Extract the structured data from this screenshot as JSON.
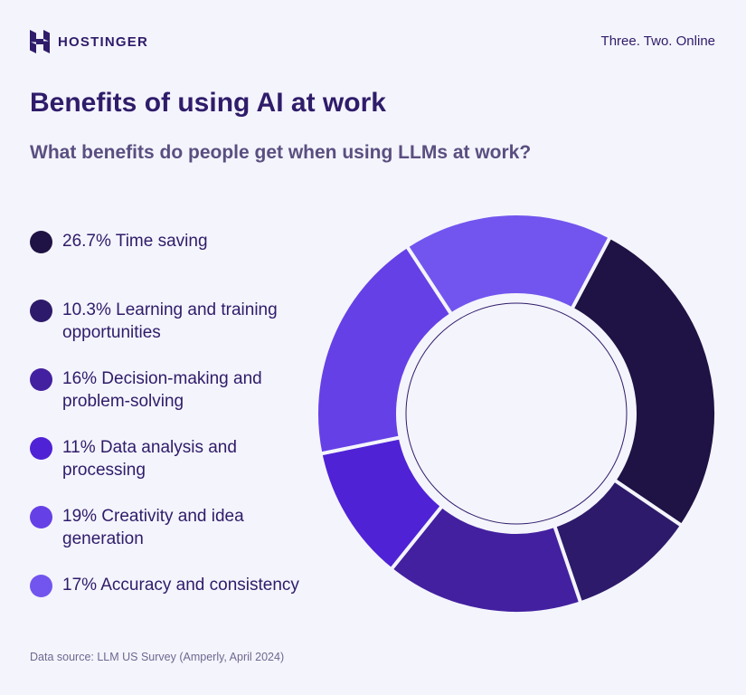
{
  "header": {
    "logo_text": "HOSTINGER",
    "tagline": "Three. Two. Online"
  },
  "title": "Benefits of using AI at work",
  "subtitle": "What benefits do people get when using LLMs at work?",
  "source": "Data source: LLM US Survey (Amperly, April 2024)",
  "chart_data": {
    "type": "pie",
    "title": "Benefits of using AI at work",
    "subtitle": "What benefits do people get when using LLMs at work?",
    "donut": true,
    "legend_position": "left",
    "slices": [
      {
        "label": "26.7% Time saving",
        "name": "Time saving",
        "value": 26.7,
        "color": "#1F1244"
      },
      {
        "label": "10.3% Learning and training opportunities",
        "name": "Learning and training opportunities",
        "value": 10.3,
        "color": "#2D1A6A"
      },
      {
        "label": "16% Decision-making and problem-solving",
        "name": "Decision-making and problem-solving",
        "value": 16,
        "color": "#4320A0"
      },
      {
        "label": "11% Data analysis and processing",
        "name": "Data analysis and processing",
        "value": 11,
        "color": "#4F22D6"
      },
      {
        "label": "19% Creativity and idea generation",
        "name": "Creativity and idea generation",
        "value": 19,
        "color": "#6540E6"
      },
      {
        "label": "17% Accuracy and consistency",
        "name": "Accuracy and consistency",
        "value": 17,
        "color": "#7255EE"
      }
    ]
  }
}
